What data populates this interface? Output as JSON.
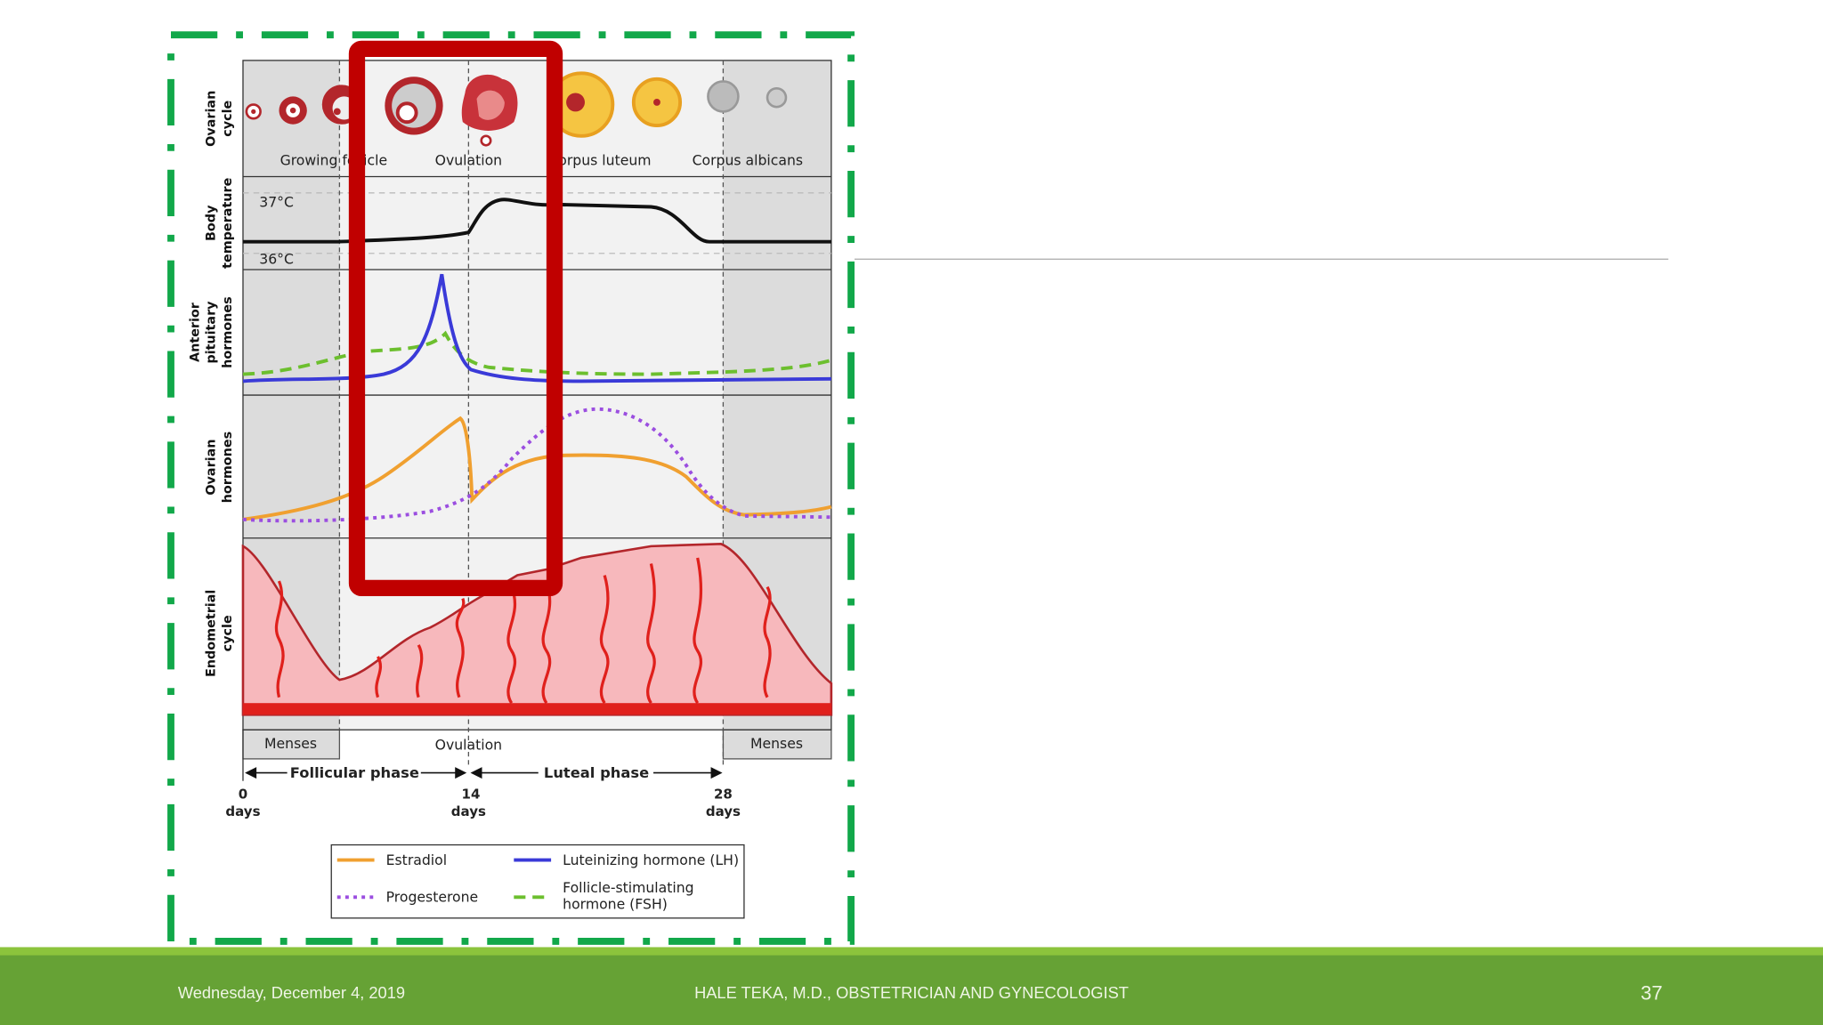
{
  "diagram": {
    "row_labels": [
      [
        "Ovarian",
        "cycle"
      ],
      [
        "Body",
        "temperature"
      ],
      [
        "Anterior",
        "pituitary",
        "hormones"
      ],
      [
        "Ovarian",
        "hormones"
      ],
      [
        "Endometrial",
        "cycle"
      ]
    ],
    "ovarian_stages": [
      "Growing follicle",
      "Ovulation",
      "Corpus luteum",
      "Corpus albicans"
    ],
    "temperatures": [
      "37°C",
      "36°C"
    ],
    "bottom_bar": [
      "Menses",
      "Ovulation",
      "Menses"
    ],
    "phases": [
      "Follicular phase",
      "Luteal phase"
    ],
    "days": [
      [
        "0",
        "days"
      ],
      [
        "14",
        "days"
      ],
      [
        "28",
        "days"
      ]
    ],
    "legend": {
      "estradiol": "Estradiol",
      "lh": "Luteinizing hormone (LH)",
      "progesterone": "Progesterone",
      "fsh": [
        "Follicle-stimulating",
        "hormone (FSH)"
      ]
    }
  },
  "footer": {
    "date": "Wednesday, December 4, 2019",
    "author": "HALE TEKA, M.D., OBSTETRICIAN AND GYNECOLOGIST",
    "page_number": "37"
  }
}
